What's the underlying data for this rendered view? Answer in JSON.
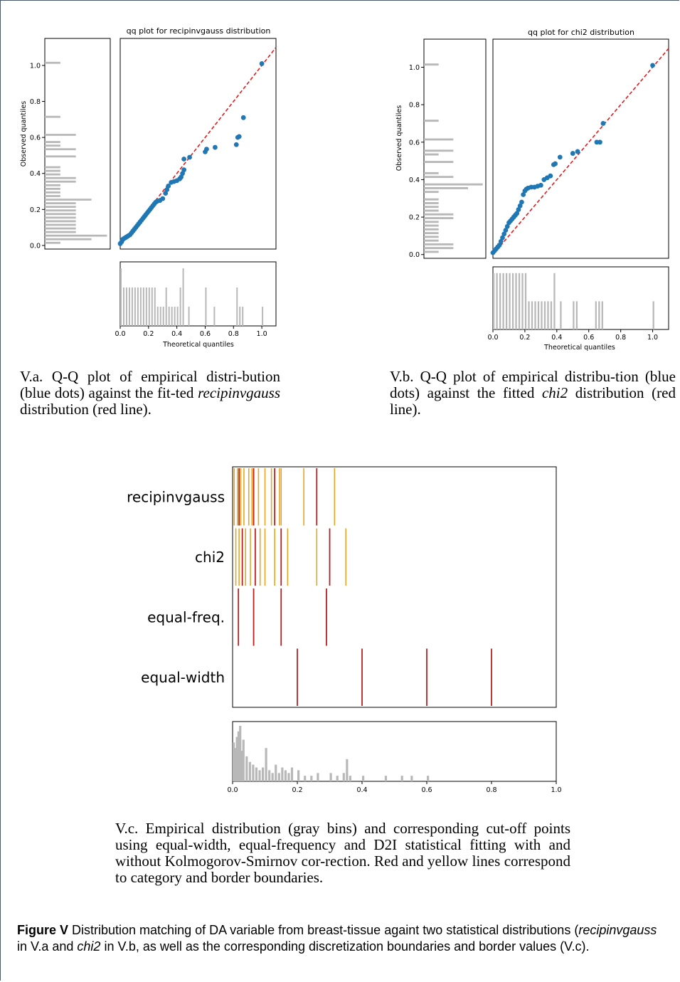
{
  "chart_data": [
    {
      "type": "scatter",
      "panel": "V.a",
      "title": "qq plot for recipinvgauss distribution",
      "xlabel": "Theoretical quantiles",
      "ylabel": "Observed quantiles",
      "xlim": [
        0,
        1.1
      ],
      "ylim": [
        -0.02,
        1.15
      ],
      "xticks": [
        "0.0",
        "0.2",
        "0.4",
        "0.6",
        "0.8",
        "1.0"
      ],
      "yticks": [
        "0.0",
        "0.2",
        "0.4",
        "0.6",
        "0.8",
        "1.0"
      ],
      "reference_line": {
        "from": [
          0,
          0
        ],
        "to": [
          1.1,
          1.1
        ],
        "color": "#e31a1c",
        "style": "dashed"
      },
      "point_color": "#1f77b4",
      "points": [
        [
          0.0,
          0.01
        ],
        [
          0.01,
          0.02
        ],
        [
          0.015,
          0.03
        ],
        [
          0.02,
          0.035
        ],
        [
          0.03,
          0.04
        ],
        [
          0.04,
          0.045
        ],
        [
          0.05,
          0.05
        ],
        [
          0.06,
          0.055
        ],
        [
          0.07,
          0.06
        ],
        [
          0.08,
          0.07
        ],
        [
          0.09,
          0.08
        ],
        [
          0.1,
          0.09
        ],
        [
          0.11,
          0.1
        ],
        [
          0.12,
          0.11
        ],
        [
          0.13,
          0.12
        ],
        [
          0.14,
          0.13
        ],
        [
          0.15,
          0.14
        ],
        [
          0.16,
          0.15
        ],
        [
          0.17,
          0.16
        ],
        [
          0.18,
          0.17
        ],
        [
          0.19,
          0.18
        ],
        [
          0.2,
          0.19
        ],
        [
          0.21,
          0.2
        ],
        [
          0.22,
          0.21
        ],
        [
          0.23,
          0.22
        ],
        [
          0.24,
          0.23
        ],
        [
          0.25,
          0.24
        ],
        [
          0.26,
          0.245
        ],
        [
          0.28,
          0.25
        ],
        [
          0.3,
          0.26
        ],
        [
          0.32,
          0.29
        ],
        [
          0.33,
          0.31
        ],
        [
          0.34,
          0.33
        ],
        [
          0.36,
          0.35
        ],
        [
          0.38,
          0.355
        ],
        [
          0.4,
          0.36
        ],
        [
          0.42,
          0.37
        ],
        [
          0.43,
          0.38
        ],
        [
          0.44,
          0.4
        ],
        [
          0.45,
          0.42
        ],
        [
          0.45,
          0.48
        ],
        [
          0.49,
          0.49
        ],
        [
          0.6,
          0.52
        ],
        [
          0.61,
          0.535
        ],
        [
          0.67,
          0.545
        ],
        [
          0.82,
          0.56
        ],
        [
          0.83,
          0.6
        ],
        [
          0.84,
          0.605
        ],
        [
          0.87,
          0.71
        ],
        [
          1.0,
          1.01
        ]
      ],
      "hist_y": [
        0.62,
        0.58,
        0.55,
        0.5,
        0.45,
        0.4,
        0.38,
        0.35,
        0.3,
        0.27,
        0.25,
        0.22,
        0.2,
        0.18,
        0.15,
        0.12,
        0.1,
        0.08,
        0.06,
        0.04,
        0.02,
        0.0
      ],
      "hist_x": [
        0.0,
        0.01,
        0.02,
        0.03,
        0.04,
        0.05,
        0.06,
        0.07,
        0.08,
        0.09,
        0.1,
        0.12,
        0.14,
        0.16,
        0.18,
        0.2,
        0.22,
        0.26,
        0.3,
        0.34,
        0.38,
        0.4,
        0.44,
        0.45,
        0.5,
        0.6,
        0.62,
        0.67,
        0.82,
        0.87,
        1.0
      ]
    },
    {
      "type": "scatter",
      "panel": "V.b",
      "title": "qq plot for chi2 distribution",
      "xlabel": "Theoretical quantiles",
      "ylabel": "Observed quantiles",
      "xlim": [
        0,
        1.1
      ],
      "ylim": [
        -0.02,
        1.15
      ],
      "xticks": [
        "0.0",
        "0.2",
        "0.4",
        "0.6",
        "0.8",
        "1.0"
      ],
      "yticks": [
        "0.0",
        "0.2",
        "0.4",
        "0.6",
        "0.8",
        "1.0"
      ],
      "reference_line": {
        "from": [
          0,
          0
        ],
        "to": [
          1.1,
          1.1
        ],
        "color": "#e31a1c",
        "style": "dashed"
      },
      "point_color": "#1f77b4",
      "points": [
        [
          0.0,
          0.01
        ],
        [
          0.01,
          0.02
        ],
        [
          0.02,
          0.03
        ],
        [
          0.03,
          0.04
        ],
        [
          0.04,
          0.05
        ],
        [
          0.05,
          0.07
        ],
        [
          0.06,
          0.09
        ],
        [
          0.07,
          0.11
        ],
        [
          0.08,
          0.13
        ],
        [
          0.09,
          0.15
        ],
        [
          0.1,
          0.17
        ],
        [
          0.11,
          0.18
        ],
        [
          0.12,
          0.19
        ],
        [
          0.13,
          0.2
        ],
        [
          0.14,
          0.21
        ],
        [
          0.15,
          0.22
        ],
        [
          0.16,
          0.24
        ],
        [
          0.17,
          0.26
        ],
        [
          0.18,
          0.28
        ],
        [
          0.19,
          0.32
        ],
        [
          0.2,
          0.34
        ],
        [
          0.21,
          0.35
        ],
        [
          0.22,
          0.355
        ],
        [
          0.24,
          0.36
        ],
        [
          0.26,
          0.36
        ],
        [
          0.28,
          0.365
        ],
        [
          0.3,
          0.37
        ],
        [
          0.32,
          0.4
        ],
        [
          0.34,
          0.41
        ],
        [
          0.36,
          0.42
        ],
        [
          0.38,
          0.48
        ],
        [
          0.39,
          0.485
        ],
        [
          0.42,
          0.52
        ],
        [
          0.5,
          0.54
        ],
        [
          0.53,
          0.55
        ],
        [
          0.65,
          0.6
        ],
        [
          0.67,
          0.6
        ],
        [
          0.69,
          0.7
        ],
        [
          1.0,
          1.01
        ]
      ],
      "hist_y": [
        0.6,
        0.55,
        0.5,
        0.42,
        0.38,
        0.34,
        0.3,
        0.25,
        0.22,
        0.18,
        0.15,
        0.12,
        0.1,
        0.08,
        0.06,
        0.04,
        0.02,
        0.01,
        0.0
      ],
      "hist_x": [
        0.0,
        0.01,
        0.02,
        0.03,
        0.04,
        0.05,
        0.06,
        0.08,
        0.1,
        0.12,
        0.15,
        0.18,
        0.2,
        0.25,
        0.3,
        0.35,
        0.4,
        0.45,
        0.5,
        0.6,
        0.65,
        0.7,
        1.0
      ]
    },
    {
      "type": "cutpoints",
      "panel": "V.c",
      "rows": [
        "recipinvgauss",
        "chi2",
        "equal-freq.",
        "equal-width"
      ],
      "xlim": [
        0,
        1.0
      ],
      "xticks": [
        "0.0",
        "0.2",
        "0.4",
        "0.6",
        "0.8",
        "1.0"
      ],
      "category_color": "#b22222",
      "border_color": "#e6a623",
      "category_boundaries": {
        "recipinvgauss": [
          0.02,
          0.065,
          0.13,
          0.26
        ],
        "chi2": [
          0.03,
          0.07,
          0.15,
          0.3
        ],
        "equal-freq.": [
          0.018,
          0.065,
          0.15,
          0.29
        ],
        "equal-width": [
          0.2,
          0.4,
          0.6,
          0.8
        ]
      },
      "border_boundaries": {
        "recipinvgauss": [
          0.005,
          0.015,
          0.025,
          0.035,
          0.05,
          0.06,
          0.08,
          0.1,
          0.12,
          0.145,
          0.15,
          0.22,
          0.315
        ],
        "chi2": [
          0.01,
          0.02,
          0.04,
          0.055,
          0.085,
          0.1,
          0.13,
          0.17,
          0.26,
          0.35
        ]
      },
      "hist_x": [
        0.0,
        0.005,
        0.01,
        0.015,
        0.02,
        0.025,
        0.03,
        0.04,
        0.05,
        0.06,
        0.07,
        0.08,
        0.09,
        0.1,
        0.11,
        0.12,
        0.13,
        0.14,
        0.15,
        0.16,
        0.17,
        0.18,
        0.2,
        0.22,
        0.24,
        0.26,
        0.3,
        0.32,
        0.34,
        0.35,
        0.36,
        0.4,
        0.47,
        0.52,
        0.55,
        0.6
      ],
      "hist_values": [
        14,
        12,
        16,
        18,
        20,
        11,
        15,
        9,
        7,
        6,
        5,
        4,
        5,
        12,
        4,
        3,
        6,
        3,
        5,
        4,
        3,
        5,
        4,
        2,
        2,
        3,
        3,
        2,
        3,
        8,
        2,
        2,
        2,
        2,
        2,
        2
      ]
    }
  ],
  "captions": {
    "va": {
      "lead": "V.a. Q-Q plot of empirical distri-bution (blue dots) against the fit-ted ",
      "em": "recipinvgauss",
      "tail": " distribution (red line)."
    },
    "vb": {
      "lead": "V.b. Q-Q plot of empirical distribu-tion (blue dots) against the fitted ",
      "em": "chi2",
      "tail": " distribution (red line)."
    },
    "vc": "V.c. Empirical distribution (gray bins) and corresponding cut-off points using equal-width, equal-frequency and D2I statistical fitting with and without Kolmogorov-Smirnov cor-rection. Red and yellow lines correspond to category and border boundaries.",
    "figure": {
      "label": "Figure V",
      "t1": " Distribution matching of DA variable from breast-tissue againt two statistical distributions (",
      "e1": "recipinvgauss",
      "t2": " in V.a and ",
      "e2": "chi2",
      "t3": " in V.b, as well as the corresponding discretization boundaries and border values (V.c)."
    }
  }
}
